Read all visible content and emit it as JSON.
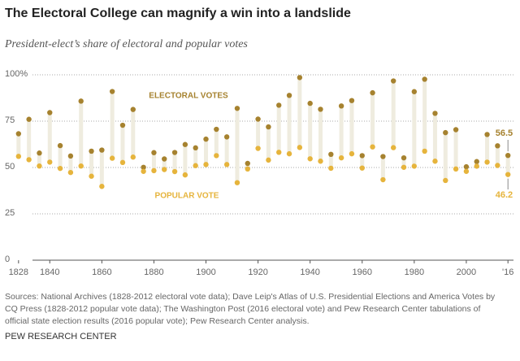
{
  "chart_data": {
    "type": "dumbbell",
    "title": "The Electoral College can magnify a win into a landslide",
    "subtitle": "President-elect’s share of electoral and popular votes",
    "x": [
      1828,
      1832,
      1836,
      1840,
      1844,
      1848,
      1852,
      1856,
      1860,
      1864,
      1868,
      1872,
      1876,
      1880,
      1884,
      1888,
      1892,
      1896,
      1900,
      1904,
      1908,
      1912,
      1916,
      1920,
      1924,
      1928,
      1932,
      1936,
      1940,
      1944,
      1948,
      1952,
      1956,
      1960,
      1964,
      1968,
      1972,
      1976,
      1980,
      1984,
      1988,
      1992,
      1996,
      2000,
      2004,
      2008,
      2012,
      2016
    ],
    "series": [
      {
        "name": "ELECTORAL VOTES",
        "color": "#a6822f",
        "values": [
          68.2,
          76.0,
          57.8,
          79.6,
          61.8,
          56.2,
          85.8,
          58.8,
          59.4,
          91.0,
          72.8,
          81.3,
          50.1,
          58.0,
          54.6,
          58.1,
          62.4,
          60.6,
          65.3,
          70.6,
          66.5,
          81.9,
          52.2,
          76.1,
          71.9,
          83.6,
          88.9,
          98.5,
          84.6,
          81.4,
          57.1,
          83.2,
          86.1,
          56.4,
          90.3,
          55.9,
          96.7,
          55.2,
          90.9,
          97.6,
          79.2,
          68.8,
          70.4,
          50.4,
          53.2,
          67.8,
          61.7,
          56.5
        ]
      },
      {
        "name": "POPULAR VOTE",
        "color": "#e6b43c",
        "values": [
          56.0,
          54.2,
          50.8,
          52.9,
          49.5,
          47.3,
          50.8,
          45.3,
          39.8,
          55.0,
          52.7,
          55.6,
          47.9,
          48.3,
          48.9,
          47.8,
          46.0,
          51.0,
          51.6,
          56.4,
          51.6,
          41.8,
          49.2,
          60.3,
          54.0,
          58.2,
          57.4,
          60.8,
          54.7,
          53.4,
          49.6,
          55.2,
          57.4,
          49.7,
          61.1,
          43.4,
          60.7,
          50.1,
          50.7,
          58.8,
          53.4,
          43.0,
          49.2,
          47.9,
          50.7,
          52.9,
          51.1,
          46.2
        ]
      }
    ],
    "xlim": [
      1824,
      2020
    ],
    "xticks": [
      1828,
      1840,
      1860,
      1880,
      1900,
      1920,
      1940,
      1960,
      1980,
      2000,
      {
        "value": 2016,
        "label": "'16"
      }
    ],
    "ylim": [
      0,
      100
    ],
    "yticks": [
      0,
      25,
      50,
      75,
      {
        "value": 100,
        "label": "100%"
      }
    ],
    "grid": true,
    "source": "Sources: National Archives (1828-2012 electoral vote data); Dave Leip's Atlas of U.S. Presidential Elections and America Votes by CQ Press (1828-2012 popular vote data); The Washington Post (2016 electoral vote) and Pew Research Center tabulations of official state election results (2016 popular vote); Pew Research Center analysis.",
    "credit": "PEW RESEARCH CENTER"
  }
}
